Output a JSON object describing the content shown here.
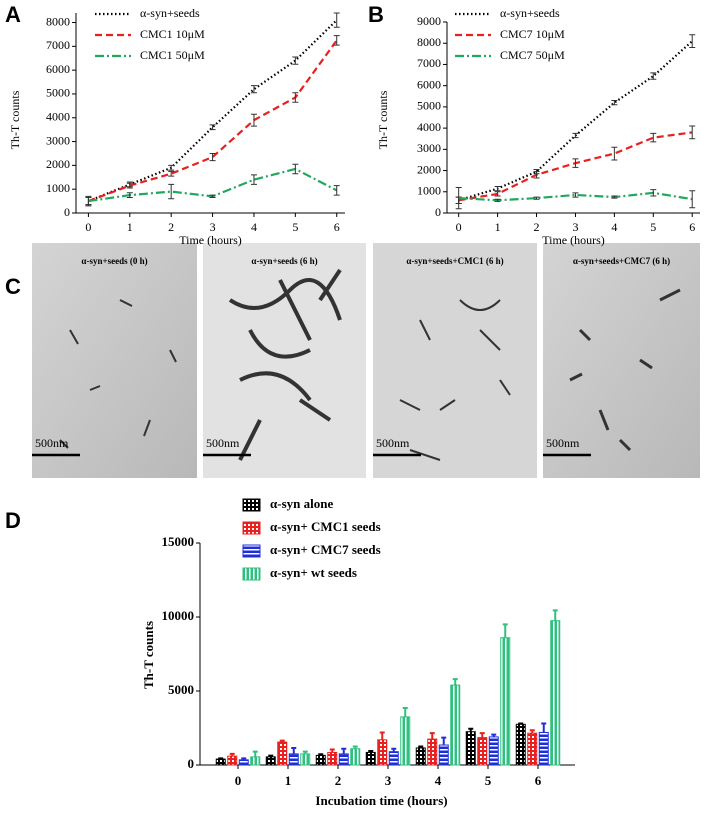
{
  "chart_data": [
    {
      "type": "line",
      "panel_label": "A",
      "x_label": "Time (hours)",
      "y_label": "Th-T counts",
      "x": [
        0,
        1,
        2,
        3,
        4,
        5,
        6
      ],
      "xlim": [
        -0.3,
        6.2
      ],
      "xticks": [
        0,
        1,
        2,
        3,
        4,
        5,
        6
      ],
      "ylim": [
        0,
        8400
      ],
      "yticks": [
        0,
        1000,
        2000,
        3000,
        4000,
        5000,
        6000,
        7000,
        8000
      ],
      "series": [
        {
          "name": "α-syn+seeds",
          "color": "#000000",
          "linestyle": "dotted",
          "values": [
            500,
            1200,
            1900,
            3600,
            5200,
            6400,
            8100
          ],
          "errors": [
            150,
            100,
            100,
            100,
            150,
            150,
            300
          ]
        },
        {
          "name": "CMC1 10μM",
          "color": "#e8201f",
          "linestyle": "dashed",
          "values": [
            500,
            1150,
            1650,
            2350,
            3900,
            4850,
            7250
          ],
          "errors": [
            150,
            100,
            100,
            150,
            250,
            200,
            200
          ]
        },
        {
          "name": "CMC1 50μM",
          "color": "#22a75f",
          "linestyle": "dashdot",
          "values": [
            500,
            750,
            900,
            700,
            1400,
            1850,
            950
          ],
          "errors": [
            200,
            100,
            300,
            50,
            200,
            200,
            200
          ]
        }
      ]
    },
    {
      "type": "line",
      "panel_label": "B",
      "x_label": "Time (hours)",
      "y_label": "Th-T counts",
      "x": [
        0,
        1,
        2,
        3,
        4,
        5,
        6
      ],
      "xlim": [
        -0.3,
        6.2
      ],
      "xticks": [
        0,
        1,
        2,
        3,
        4,
        5,
        6
      ],
      "ylim": [
        0,
        9000
      ],
      "yticks": [
        0,
        1000,
        2000,
        3000,
        4000,
        5000,
        6000,
        7000,
        8000,
        9000
      ],
      "series": [
        {
          "name": "α-syn+seeds",
          "color": "#000000",
          "linestyle": "dotted",
          "values": [
            600,
            1150,
            1950,
            3650,
            5200,
            6450,
            8100
          ],
          "errors": [
            150,
            100,
            100,
            100,
            100,
            150,
            300
          ]
        },
        {
          "name": "CMC7 10μM",
          "color": "#e8201f",
          "linestyle": "dashed",
          "values": [
            600,
            900,
            1800,
            2350,
            2800,
            3550,
            3800
          ],
          "errors": [
            150,
            100,
            150,
            200,
            300,
            200,
            300
          ]
        },
        {
          "name": "CMC7 50μM",
          "color": "#22a75f",
          "linestyle": "dashdot",
          "values": [
            700,
            600,
            700,
            850,
            750,
            950,
            650
          ],
          "errors": [
            500,
            50,
            50,
            100,
            50,
            150,
            400
          ]
        }
      ]
    },
    {
      "type": "bar",
      "panel_label": "D",
      "x_label": "Incubation time (hours)",
      "y_label": "Th-T counts",
      "categories": [
        "0",
        "1",
        "2",
        "3",
        "4",
        "5",
        "6"
      ],
      "ylim": [
        0,
        15000
      ],
      "yticks": [
        0,
        5000,
        10000,
        15000
      ],
      "series": [
        {
          "name": "α-syn alone",
          "color": "#000000",
          "values": [
            400,
            550,
            650,
            850,
            1150,
            2250,
            2750
          ],
          "errors": [
            50,
            80,
            80,
            100,
            100,
            200,
            50
          ]
        },
        {
          "name": "α-syn+ CMC1 seeds",
          "color": "#e8201f",
          "values": [
            600,
            1550,
            850,
            1700,
            1750,
            1850,
            2150
          ],
          "errors": [
            150,
            100,
            200,
            500,
            400,
            300,
            200
          ]
        },
        {
          "name": "α-syn+ CMC7 seeds",
          "color": "#1f2fd8",
          "values": [
            350,
            750,
            750,
            900,
            1350,
            1900,
            2200
          ],
          "errors": [
            100,
            400,
            350,
            200,
            500,
            150,
            600
          ]
        },
        {
          "name": "α-syn+ wt seeds",
          "color": "#2fbf7f",
          "values": [
            550,
            750,
            1100,
            3250,
            5400,
            8600,
            9750
          ],
          "errors": [
            350,
            150,
            150,
            600,
            400,
            900,
            700
          ]
        }
      ]
    }
  ],
  "micrographs": {
    "panel_label": "C",
    "images": [
      {
        "caption": "α-syn+seeds (0 h)",
        "scale_label": "500nm"
      },
      {
        "caption": "α-syn+seeds (6 h)",
        "scale_label": "500nm"
      },
      {
        "caption": "α-syn+seeds+CMC1 (6 h)",
        "scale_label": "500nm"
      },
      {
        "caption": "α-syn+seeds+CMC7 (6 h)",
        "scale_label": "500nm"
      }
    ]
  }
}
